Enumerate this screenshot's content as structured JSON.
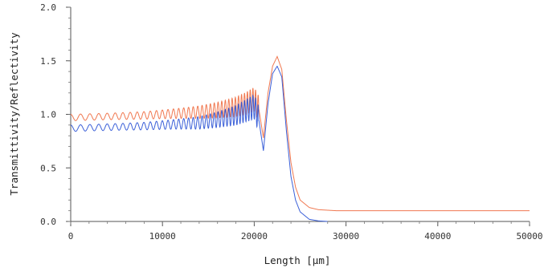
{
  "chart_data": {
    "type": "line",
    "title": "",
    "xlabel": "Length [µm]",
    "ylabel": "Transmittivity/Reflectivity",
    "xlim": [
      0,
      50000
    ],
    "ylim": [
      0.0,
      2.0
    ],
    "x_ticks": [
      "0",
      "10000",
      "20000",
      "30000",
      "40000",
      "50000"
    ],
    "y_ticks": [
      "0.0",
      "0.5",
      "1.0",
      "1.5",
      "2.0"
    ],
    "grid": false,
    "legend": "none",
    "series": [
      {
        "color": "#f07850",
        "x": [
          0,
          2000,
          4000,
          6000,
          8000,
          10000,
          12000,
          14000,
          16000,
          18000,
          19000,
          20000,
          20500,
          21000,
          21500,
          22000,
          22500,
          23000,
          23500,
          24000,
          24500,
          25000,
          26000,
          27000,
          28000,
          29000,
          30000,
          40000,
          50000
        ],
        "y": [
          0.97,
          0.975,
          0.98,
          0.985,
          0.99,
          1.0,
          1.01,
          1.02,
          1.04,
          1.07,
          1.1,
          1.14,
          1.05,
          0.78,
          1.2,
          1.45,
          1.54,
          1.42,
          0.95,
          0.55,
          0.32,
          0.2,
          0.13,
          0.11,
          0.105,
          0.1,
          0.1,
          0.1,
          0.1
        ]
      },
      {
        "color": "#3a5fd8",
        "x": [
          0,
          2000,
          4000,
          6000,
          8000,
          10000,
          12000,
          14000,
          16000,
          18000,
          19000,
          20000,
          20500,
          21000,
          21500,
          22000,
          22500,
          23000,
          23500,
          24000,
          24500,
          25000,
          26000,
          27000,
          28000
        ],
        "y": [
          0.87,
          0.875,
          0.88,
          0.885,
          0.89,
          0.9,
          0.91,
          0.92,
          0.95,
          0.99,
          1.03,
          1.07,
          0.95,
          0.66,
          1.1,
          1.38,
          1.45,
          1.35,
          0.85,
          0.42,
          0.2,
          0.09,
          0.02,
          0.005,
          0.0
        ]
      }
    ]
  }
}
